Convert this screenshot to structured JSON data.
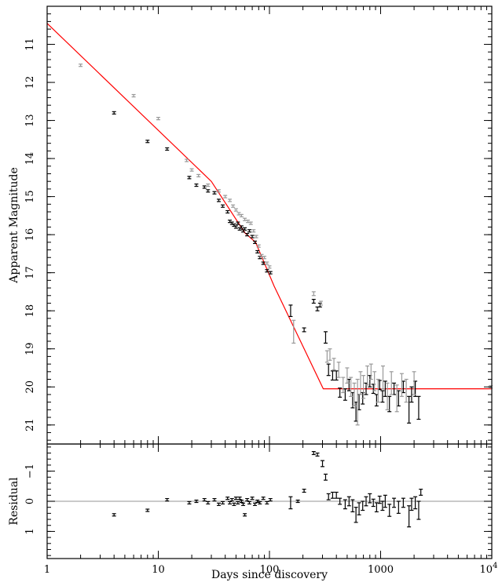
{
  "chart_data": [
    {
      "panel": "main",
      "type": "scatter",
      "x_scale": "log",
      "y_inverted": true,
      "xlim": [
        1,
        10000
      ],
      "ylim": [
        21.5,
        10
      ],
      "ylabel": "Apparent Magnitude",
      "xlabel": "",
      "x_ticks": [
        {
          "value": 1,
          "label": "1"
        },
        {
          "value": 10,
          "label": "10"
        },
        {
          "value": 100,
          "label": "100"
        },
        {
          "value": 1000,
          "label": "1000"
        },
        {
          "value": 10000,
          "label": "10",
          "exponent": "4"
        }
      ],
      "y_ticks": [
        {
          "value": 11,
          "label": "11"
        },
        {
          "value": 12,
          "label": "12"
        },
        {
          "value": 13,
          "label": "13"
        },
        {
          "value": 14,
          "label": "14"
        },
        {
          "value": 15,
          "label": "15"
        },
        {
          "value": 16,
          "label": "16"
        },
        {
          "value": 17,
          "label": "17"
        },
        {
          "value": 18,
          "label": "18"
        },
        {
          "value": 19,
          "label": "19"
        },
        {
          "value": 20,
          "label": "20"
        },
        {
          "value": 21,
          "label": "21"
        }
      ],
      "fit_line": {
        "color": "#ff0000",
        "points": [
          [
            1,
            10.45
          ],
          [
            30,
            14.6
          ],
          [
            60,
            15.95
          ],
          [
            75,
            16.2
          ],
          [
            110,
            17.35
          ],
          [
            305,
            20.05
          ],
          [
            10000,
            20.05
          ]
        ]
      },
      "series": [
        {
          "color": "#000000",
          "points": [
            [
              4,
              12.8,
              0.02
            ],
            [
              8,
              13.55,
              0.02
            ],
            [
              12,
              13.75,
              0.02
            ],
            [
              19,
              14.5,
              0.03
            ],
            [
              22,
              14.7,
              0.03
            ],
            [
              26,
              14.75,
              0.03
            ],
            [
              28,
              14.85,
              0.03
            ],
            [
              32,
              14.9,
              0.03
            ],
            [
              35,
              15.1,
              0.03
            ],
            [
              38,
              15.25,
              0.03
            ],
            [
              42,
              15.4,
              0.03
            ],
            [
              44,
              15.65,
              0.03
            ],
            [
              46,
              15.7,
              0.03
            ],
            [
              48,
              15.75,
              0.03
            ],
            [
              50,
              15.8,
              0.03
            ],
            [
              52,
              15.7,
              0.03
            ],
            [
              54,
              15.85,
              0.03
            ],
            [
              56,
              15.8,
              0.03
            ],
            [
              58,
              15.9,
              0.03
            ],
            [
              60,
              15.85,
              0.03
            ],
            [
              63,
              16.0,
              0.03
            ],
            [
              66,
              15.9,
              0.03
            ],
            [
              70,
              16.05,
              0.03
            ],
            [
              74,
              16.2,
              0.03
            ],
            [
              78,
              16.45,
              0.03
            ],
            [
              82,
              16.6,
              0.03
            ],
            [
              88,
              16.75,
              0.03
            ],
            [
              95,
              16.95,
              0.03
            ],
            [
              102,
              17.0,
              0.03
            ],
            [
              155,
              18.0,
              0.15
            ],
            [
              205,
              18.5,
              0.05
            ],
            [
              250,
              17.75,
              0.05
            ],
            [
              270,
              17.95,
              0.05
            ],
            [
              285,
              17.85,
              0.05
            ],
            [
              320,
              18.7,
              0.15
            ],
            [
              340,
              19.55,
              0.15
            ],
            [
              370,
              19.7,
              0.12
            ],
            [
              400,
              19.7,
              0.12
            ],
            [
              430,
              20.15,
              0.12
            ],
            [
              480,
              20.2,
              0.15
            ],
            [
              520,
              19.95,
              0.15
            ],
            [
              560,
              20.35,
              0.2
            ],
            [
              600,
              20.65,
              0.25
            ],
            [
              640,
              20.4,
              0.2
            ],
            [
              690,
              20.3,
              0.15
            ],
            [
              740,
              20.05,
              0.15
            ],
            [
              800,
              19.85,
              0.15
            ],
            [
              860,
              20.05,
              0.12
            ],
            [
              920,
              20.35,
              0.15
            ],
            [
              980,
              19.95,
              0.12
            ],
            [
              1040,
              20.25,
              0.15
            ],
            [
              1100,
              20.05,
              0.2
            ],
            [
              1200,
              20.45,
              0.2
            ],
            [
              1320,
              20.05,
              0.15
            ],
            [
              1450,
              20.3,
              0.2
            ],
            [
              1600,
              20.0,
              0.15
            ],
            [
              1800,
              20.6,
              0.35
            ],
            [
              1900,
              20.2,
              0.2
            ],
            [
              2050,
              20.05,
              0.2
            ],
            [
              2200,
              20.55,
              0.3
            ]
          ]
        },
        {
          "color": "#999999",
          "points": [
            [
              2,
              11.55,
              0.02
            ],
            [
              6,
              12.35,
              0.02
            ],
            [
              10,
              12.95,
              0.02
            ],
            [
              18,
              14.05,
              0.03
            ],
            [
              20,
              14.3,
              0.03
            ],
            [
              23,
              14.45,
              0.03
            ],
            [
              28,
              14.7,
              0.03
            ],
            [
              35,
              14.85,
              0.03
            ],
            [
              40,
              15.0,
              0.03
            ],
            [
              44,
              15.1,
              0.03
            ],
            [
              47,
              15.25,
              0.03
            ],
            [
              50,
              15.35,
              0.03
            ],
            [
              53,
              15.45,
              0.03
            ],
            [
              56,
              15.5,
              0.03
            ],
            [
              60,
              15.6,
              0.03
            ],
            [
              64,
              15.65,
              0.03
            ],
            [
              68,
              15.7,
              0.03
            ],
            [
              72,
              15.9,
              0.03
            ],
            [
              76,
              16.05,
              0.03
            ],
            [
              80,
              16.3,
              0.03
            ],
            [
              85,
              16.55,
              0.03
            ],
            [
              90,
              16.6,
              0.03
            ],
            [
              95,
              16.75,
              0.03
            ],
            [
              100,
              16.85,
              0.03
            ],
            [
              165,
              18.55,
              0.3
            ],
            [
              250,
              17.55,
              0.05
            ],
            [
              290,
              17.8,
              0.05
            ],
            [
              330,
              19.2,
              0.15
            ],
            [
              350,
              19.15,
              0.15
            ],
            [
              380,
              19.4,
              0.15
            ],
            [
              420,
              19.55,
              0.2
            ],
            [
              460,
              19.95,
              0.2
            ],
            [
              500,
              19.7,
              0.2
            ],
            [
              540,
              20.0,
              0.25
            ],
            [
              580,
              20.2,
              0.3
            ],
            [
              620,
              20.4,
              0.6
            ],
            [
              660,
              19.9,
              0.3
            ],
            [
              700,
              20.0,
              0.3
            ],
            [
              760,
              19.7,
              0.25
            ],
            [
              820,
              19.6,
              0.2
            ],
            [
              880,
              19.85,
              0.25
            ],
            [
              950,
              20.1,
              0.3
            ],
            [
              1050,
              19.75,
              0.3
            ],
            [
              1150,
              20.25,
              0.35
            ],
            [
              1250,
              19.9,
              0.3
            ],
            [
              1400,
              20.3,
              0.35
            ],
            [
              1550,
              19.95,
              0.3
            ],
            [
              1700,
              20.1,
              0.3
            ],
            [
              2000,
              19.9,
              0.3
            ],
            [
              9800,
              20.0,
              0.02
            ]
          ]
        }
      ]
    },
    {
      "panel": "residual",
      "type": "scatter",
      "x_scale": "log",
      "y_inverted": true,
      "xlim": [
        1,
        10000
      ],
      "ylim": [
        1.9,
        -1.9
      ],
      "ylabel": "Residual",
      "xlabel": "Days since discovery",
      "x_ticks": [
        {
          "value": 1,
          "label": "1"
        },
        {
          "value": 10,
          "label": "10"
        },
        {
          "value": 100,
          "label": "100"
        },
        {
          "value": 1000,
          "label": "1000"
        },
        {
          "value": 10000,
          "label": "10",
          "exponent": "4"
        }
      ],
      "y_ticks": [
        {
          "value": -1,
          "label": "−1"
        },
        {
          "value": 0,
          "label": "0"
        },
        {
          "value": 1,
          "label": "1"
        }
      ],
      "reference_line": {
        "value": 0,
        "color": "#aaaaaa"
      },
      "series": [
        {
          "color": "#000000",
          "points": [
            [
              4,
              0.45,
              0.02
            ],
            [
              8,
              0.3,
              0.02
            ],
            [
              12,
              -0.05,
              0.02
            ],
            [
              19,
              0.05,
              0.03
            ],
            [
              22,
              0.0,
              0.03
            ],
            [
              26,
              -0.05,
              0.03
            ],
            [
              28,
              0.05,
              0.03
            ],
            [
              32,
              -0.05,
              0.03
            ],
            [
              35,
              0.1,
              0.03
            ],
            [
              38,
              0.05,
              0.03
            ],
            [
              42,
              -0.1,
              0.03
            ],
            [
              44,
              0.05,
              0.03
            ],
            [
              46,
              -0.05,
              0.03
            ],
            [
              48,
              0.1,
              0.03
            ],
            [
              50,
              -0.1,
              0.03
            ],
            [
              52,
              0.05,
              0.03
            ],
            [
              54,
              -0.1,
              0.03
            ],
            [
              56,
              0.0,
              0.03
            ],
            [
              58,
              0.1,
              0.03
            ],
            [
              60,
              0.45,
              0.03
            ],
            [
              63,
              -0.05,
              0.03
            ],
            [
              66,
              0.05,
              0.03
            ],
            [
              70,
              -0.1,
              0.03
            ],
            [
              74,
              0.1,
              0.03
            ],
            [
              78,
              0.0,
              0.03
            ],
            [
              82,
              0.05,
              0.03
            ],
            [
              88,
              -0.1,
              0.03
            ],
            [
              95,
              0.05,
              0.03
            ],
            [
              102,
              -0.05,
              0.03
            ],
            [
              155,
              0.05,
              0.2
            ],
            [
              180,
              0.0,
              0.03
            ],
            [
              205,
              -0.35,
              0.05
            ],
            [
              250,
              -1.6,
              0.05
            ],
            [
              270,
              -1.55,
              0.05
            ],
            [
              300,
              -1.25,
              0.1
            ],
            [
              320,
              -0.8,
              0.1
            ],
            [
              340,
              -0.15,
              0.1
            ],
            [
              370,
              -0.2,
              0.1
            ],
            [
              400,
              -0.2,
              0.1
            ],
            [
              430,
              0.0,
              0.1
            ],
            [
              480,
              0.1,
              0.15
            ],
            [
              520,
              0.0,
              0.15
            ],
            [
              560,
              0.15,
              0.2
            ],
            [
              600,
              0.45,
              0.25
            ],
            [
              640,
              0.25,
              0.2
            ],
            [
              690,
              0.15,
              0.15
            ],
            [
              740,
              0.0,
              0.15
            ],
            [
              800,
              -0.1,
              0.15
            ],
            [
              860,
              0.05,
              0.12
            ],
            [
              920,
              0.2,
              0.15
            ],
            [
              980,
              -0.05,
              0.12
            ],
            [
              1040,
              0.15,
              0.15
            ],
            [
              1100,
              0.0,
              0.2
            ],
            [
              1200,
              0.3,
              0.2
            ],
            [
              1320,
              0.05,
              0.15
            ],
            [
              1450,
              0.2,
              0.2
            ],
            [
              1600,
              0.05,
              0.15
            ],
            [
              1800,
              0.5,
              0.35
            ],
            [
              1900,
              0.1,
              0.2
            ],
            [
              2050,
              0.05,
              0.2
            ],
            [
              2200,
              0.3,
              0.3
            ],
            [
              2300,
              -0.3,
              0.1
            ]
          ]
        }
      ]
    }
  ]
}
